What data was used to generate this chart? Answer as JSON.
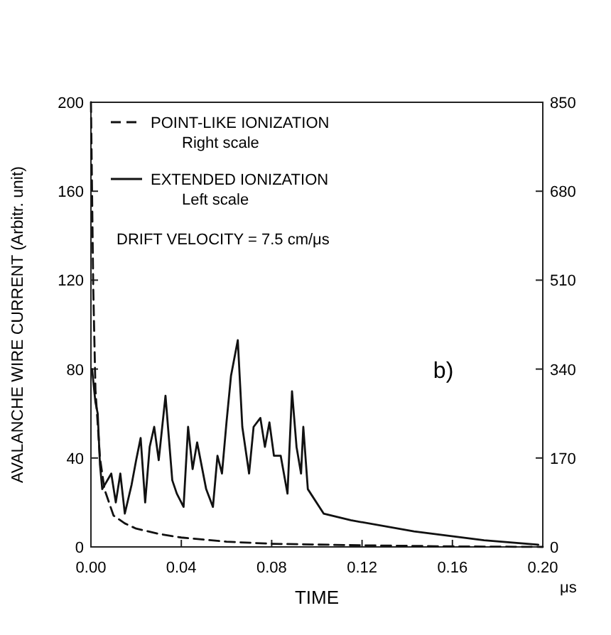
{
  "chart_data": {
    "type": "line",
    "xlabel": "TIME",
    "ylabel": "AVALANCHE WIRE CURRENT (Arbitr. unit)",
    "xlim": [
      0,
      0.2
    ],
    "xticks": [
      {
        "value": 0,
        "label": "0.00"
      },
      0.04,
      0.08,
      0.12,
      0.16,
      {
        "value": 0.2,
        "label": "0.20"
      }
    ],
    "ylim": [
      0,
      200
    ],
    "yticks": [
      0,
      40,
      80,
      120,
      160,
      200
    ],
    "y2lim": [
      0,
      850
    ],
    "y2ticks": [
      0,
      170,
      340,
      510,
      680,
      850
    ],
    "legend": "top left",
    "grid": false,
    "marker": "none",
    "annotations": [
      "b)",
      "DRIFT VELOCITY = 7.5 cm/μs",
      "μs"
    ],
    "series": [
      {
        "name": "POINT-LIKE IONIZATION\nRight scale",
        "color": "#111111",
        "axis": "y2",
        "line_style": "dashed",
        "x": [
          0,
          0.001,
          0.002,
          0.004,
          0.006,
          0.01,
          0.015,
          0.02,
          0.03,
          0.04,
          0.06,
          0.08,
          0.12,
          0.16,
          0.2
        ],
        "values": [
          850,
          500,
          300,
          170,
          110,
          60,
          45,
          35,
          25,
          18,
          10,
          6,
          3,
          1,
          0
        ]
      },
      {
        "name": "EXTENDED IONIZATION\nLeft scale",
        "color": "#111111",
        "line_style": "solid",
        "x": [
          0.0005,
          0.002,
          0.003,
          0.004,
          0.005,
          0.009,
          0.011,
          0.013,
          0.015,
          0.018,
          0.02,
          0.022,
          0.024,
          0.026,
          0.028,
          0.03,
          0.033,
          0.036,
          0.038,
          0.041,
          0.043,
          0.045,
          0.047,
          0.051,
          0.054,
          0.056,
          0.058,
          0.06,
          0.062,
          0.065,
          0.067,
          0.07,
          0.072,
          0.075,
          0.077,
          0.079,
          0.081,
          0.084,
          0.087,
          0.089,
          0.091,
          0.093,
          0.094,
          0.096,
          0.103,
          0.115,
          0.143,
          0.174,
          0.198
        ],
        "values": [
          80,
          65,
          60,
          37,
          26,
          33,
          20,
          33,
          15,
          28,
          39,
          49,
          20,
          45,
          54,
          39,
          68,
          30,
          24,
          18,
          54,
          35,
          47,
          26,
          18,
          41,
          33,
          56,
          77,
          93,
          54,
          33,
          54,
          58,
          45,
          56,
          41,
          41,
          24,
          70,
          45,
          33,
          54,
          26,
          15,
          12,
          7,
          3,
          1
        ]
      }
    ]
  }
}
